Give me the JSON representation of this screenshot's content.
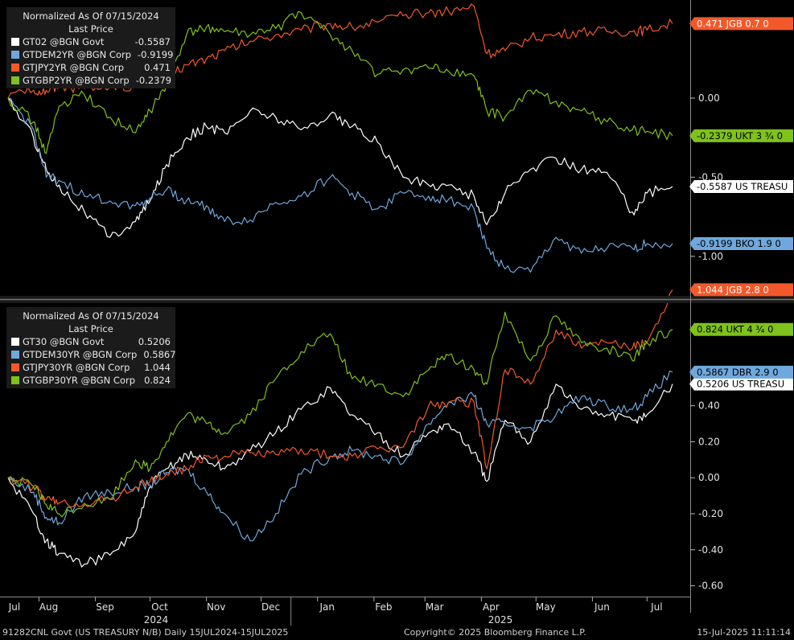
{
  "panels": [
    {
      "legend_title": "Normalized As Of 07/15/2024",
      "legend_subtitle": "Last Price",
      "series": [
        {
          "name": "GT02 @BGN Govt",
          "value": "-0.5587",
          "color": "#ffffff",
          "tag": "-0.5587 US TREASU"
        },
        {
          "name": "GTDEM2YR @BGN Corp",
          "value": "-0.9199",
          "color": "#6fa8dc",
          "tag": "-0.9199 BKO 1.9 0"
        },
        {
          "name": "GTJPY2YR @BGN Corp",
          "value": "0.471",
          "color": "#f2592a",
          "tag": "0.471  JGB 0.7 0"
        },
        {
          "name": "GTGBP2YR @BGN Corp",
          "value": "-0.2379",
          "color": "#7ec21b",
          "tag": "-0.2379 UKT 3 ¾ 0"
        }
      ],
      "ytick_labels": [
        "0.00",
        "-0.50",
        "-1.00"
      ]
    },
    {
      "legend_title": "Normalized As Of 07/15/2024",
      "legend_subtitle": "Last Price",
      "series": [
        {
          "name": "GT30 @BGN Govt",
          "value": "0.5206",
          "color": "#ffffff",
          "tag": "0.5206 US TREASU"
        },
        {
          "name": "GTDEM30YR @BGN Corp",
          "value": "0.5867",
          "color": "#6fa8dc",
          "tag": "0.5867 DBR 2.9 0"
        },
        {
          "name": "GTJPY30YR @BGN Corp",
          "value": "1.044",
          "color": "#f2592a",
          "tag": "1.044  JGB 2.8 0"
        },
        {
          "name": "GTGBP30YR @BGN Corp",
          "value": "0.824",
          "color": "#7ec21b",
          "tag": "0.824  UKT 4 ¾ 0"
        }
      ],
      "ytick_labels": [
        "0.40",
        "0.20",
        "0.00",
        "-0.20",
        "-0.40",
        "-0.60"
      ]
    }
  ],
  "x_axis": {
    "month_labels": [
      "Jul",
      "Aug",
      "Sep",
      "Oct",
      "Nov",
      "Dec",
      "Jan",
      "Feb",
      "Mar",
      "Apr",
      "May",
      "Jun",
      "Jul"
    ],
    "year_labels": [
      "2024",
      "2025"
    ]
  },
  "footer": {
    "left": "91282CNL Govt (US TREASURY N/B)  Daily 15JUL2024-15JUL2025",
    "center": "Copyright© 2025 Bloomberg Finance L.P.",
    "right": "15-Jul-2025 11:11:14"
  },
  "chart_data": [
    {
      "type": "line",
      "x": [
        "2024-07-15",
        "2024-07-29",
        "2024-08-05",
        "2024-08-12",
        "2024-08-26",
        "2024-09-09",
        "2024-09-23",
        "2024-10-01",
        "2024-10-10",
        "2024-10-21",
        "2024-11-01",
        "2024-11-11",
        "2024-11-25",
        "2024-12-09",
        "2024-12-23",
        "2025-01-08",
        "2025-01-20",
        "2025-02-03",
        "2025-02-17",
        "2025-03-03",
        "2025-03-14",
        "2025-03-28",
        "2025-04-04",
        "2025-04-14",
        "2025-04-28",
        "2025-05-12",
        "2025-05-26",
        "2025-06-09",
        "2025-06-23",
        "2025-07-01",
        "2025-07-15"
      ],
      "ylim": [
        -1.25,
        0.62
      ],
      "ticks": [
        0.0,
        -0.5,
        -1.0
      ],
      "series": [
        {
          "name": "GT02 @BGN Govt",
          "values": [
            0.0,
            -0.25,
            -0.45,
            -0.55,
            -0.72,
            -0.88,
            -0.78,
            -0.65,
            -0.42,
            -0.25,
            -0.18,
            -0.22,
            -0.08,
            -0.12,
            -0.2,
            -0.1,
            -0.18,
            -0.28,
            -0.5,
            -0.55,
            -0.55,
            -0.62,
            -0.8,
            -0.6,
            -0.45,
            -0.38,
            -0.45,
            -0.47,
            -0.72,
            -0.6,
            -0.5587
          ]
        },
        {
          "name": "GTDEM2YR @BGN Corp",
          "values": [
            0.0,
            -0.2,
            -0.5,
            -0.52,
            -0.62,
            -0.65,
            -0.68,
            -0.63,
            -0.58,
            -0.65,
            -0.68,
            -0.78,
            -0.77,
            -0.66,
            -0.62,
            -0.5,
            -0.6,
            -0.7,
            -0.6,
            -0.62,
            -0.64,
            -0.7,
            -0.95,
            -1.08,
            -1.1,
            -0.88,
            -0.98,
            -0.95,
            -0.95,
            -0.92,
            -0.9199
          ]
        },
        {
          "name": "GTJPY2YR @BGN Corp",
          "values": [
            0.0,
            0.05,
            0.05,
            0.07,
            0.06,
            0.07,
            0.08,
            0.1,
            0.14,
            0.21,
            0.25,
            0.3,
            0.36,
            0.4,
            0.43,
            0.47,
            0.45,
            0.48,
            0.52,
            0.54,
            0.55,
            0.58,
            0.28,
            0.3,
            0.38,
            0.4,
            0.42,
            0.42,
            0.42,
            0.43,
            0.471
          ]
        },
        {
          "name": "GTGBP2YR @BGN Corp",
          "values": [
            0.0,
            -0.15,
            -0.35,
            -0.05,
            0.02,
            -0.12,
            -0.22,
            -0.08,
            0.08,
            0.4,
            0.45,
            0.42,
            0.4,
            0.44,
            0.54,
            0.4,
            0.3,
            0.15,
            0.18,
            0.19,
            0.17,
            0.14,
            -0.08,
            -0.12,
            0.05,
            -0.02,
            -0.08,
            -0.15,
            -0.2,
            -0.21,
            -0.2379
          ]
        }
      ]
    },
    {
      "type": "line",
      "x": [
        "2024-07-15",
        "2024-07-29",
        "2024-08-05",
        "2024-08-12",
        "2024-08-26",
        "2024-09-09",
        "2024-09-23",
        "2024-10-01",
        "2024-10-10",
        "2024-10-21",
        "2024-11-01",
        "2024-11-11",
        "2024-11-25",
        "2024-12-09",
        "2024-12-23",
        "2025-01-08",
        "2025-01-20",
        "2025-02-03",
        "2025-02-17",
        "2025-03-03",
        "2025-03-14",
        "2025-03-28",
        "2025-04-04",
        "2025-04-14",
        "2025-04-28",
        "2025-05-12",
        "2025-05-26",
        "2025-06-09",
        "2025-06-23",
        "2025-07-01",
        "2025-07-15"
      ],
      "ylim": [
        -0.66,
        0.97
      ],
      "ticks": [
        0.4,
        0.2,
        0.0,
        -0.2,
        -0.4,
        -0.6
      ],
      "series": [
        {
          "name": "GT30 @BGN Govt",
          "values": [
            0.0,
            -0.2,
            -0.35,
            -0.42,
            -0.48,
            -0.43,
            -0.3,
            -0.05,
            0.05,
            0.13,
            0.1,
            0.05,
            0.15,
            0.25,
            0.38,
            0.5,
            0.35,
            0.25,
            0.12,
            0.25,
            0.3,
            0.14,
            -0.02,
            0.32,
            0.2,
            0.52,
            0.38,
            0.35,
            0.32,
            0.35,
            0.5206
          ]
        },
        {
          "name": "GTDEM30YR @BGN Corp",
          "values": [
            0.0,
            -0.08,
            -0.22,
            -0.25,
            -0.1,
            -0.08,
            -0.05,
            -0.04,
            0.03,
            0.05,
            -0.08,
            -0.2,
            -0.35,
            -0.2,
            0.02,
            0.12,
            0.15,
            0.12,
            0.08,
            0.3,
            0.42,
            0.45,
            0.3,
            0.3,
            0.28,
            0.35,
            0.45,
            0.4,
            0.38,
            0.45,
            0.5867
          ]
        },
        {
          "name": "GTJPY30YR @BGN Corp",
          "values": [
            0.0,
            -0.05,
            -0.12,
            -0.14,
            -0.14,
            -0.12,
            -0.05,
            -0.02,
            0.02,
            0.05,
            0.12,
            0.12,
            0.14,
            0.13,
            0.16,
            0.12,
            0.12,
            0.16,
            0.17,
            0.4,
            0.42,
            0.42,
            0.05,
            0.6,
            0.52,
            0.82,
            0.72,
            0.75,
            0.72,
            0.75,
            1.044
          ]
        },
        {
          "name": "GTGBP30YR @BGN Corp",
          "values": [
            0.0,
            -0.05,
            -0.15,
            -0.2,
            -0.15,
            -0.12,
            0.1,
            0.05,
            0.2,
            0.35,
            0.3,
            0.25,
            0.35,
            0.55,
            0.7,
            0.8,
            0.55,
            0.52,
            0.45,
            0.6,
            0.68,
            0.6,
            0.52,
            0.92,
            0.65,
            0.9,
            0.75,
            0.72,
            0.65,
            0.75,
            0.824
          ]
        }
      ]
    }
  ]
}
